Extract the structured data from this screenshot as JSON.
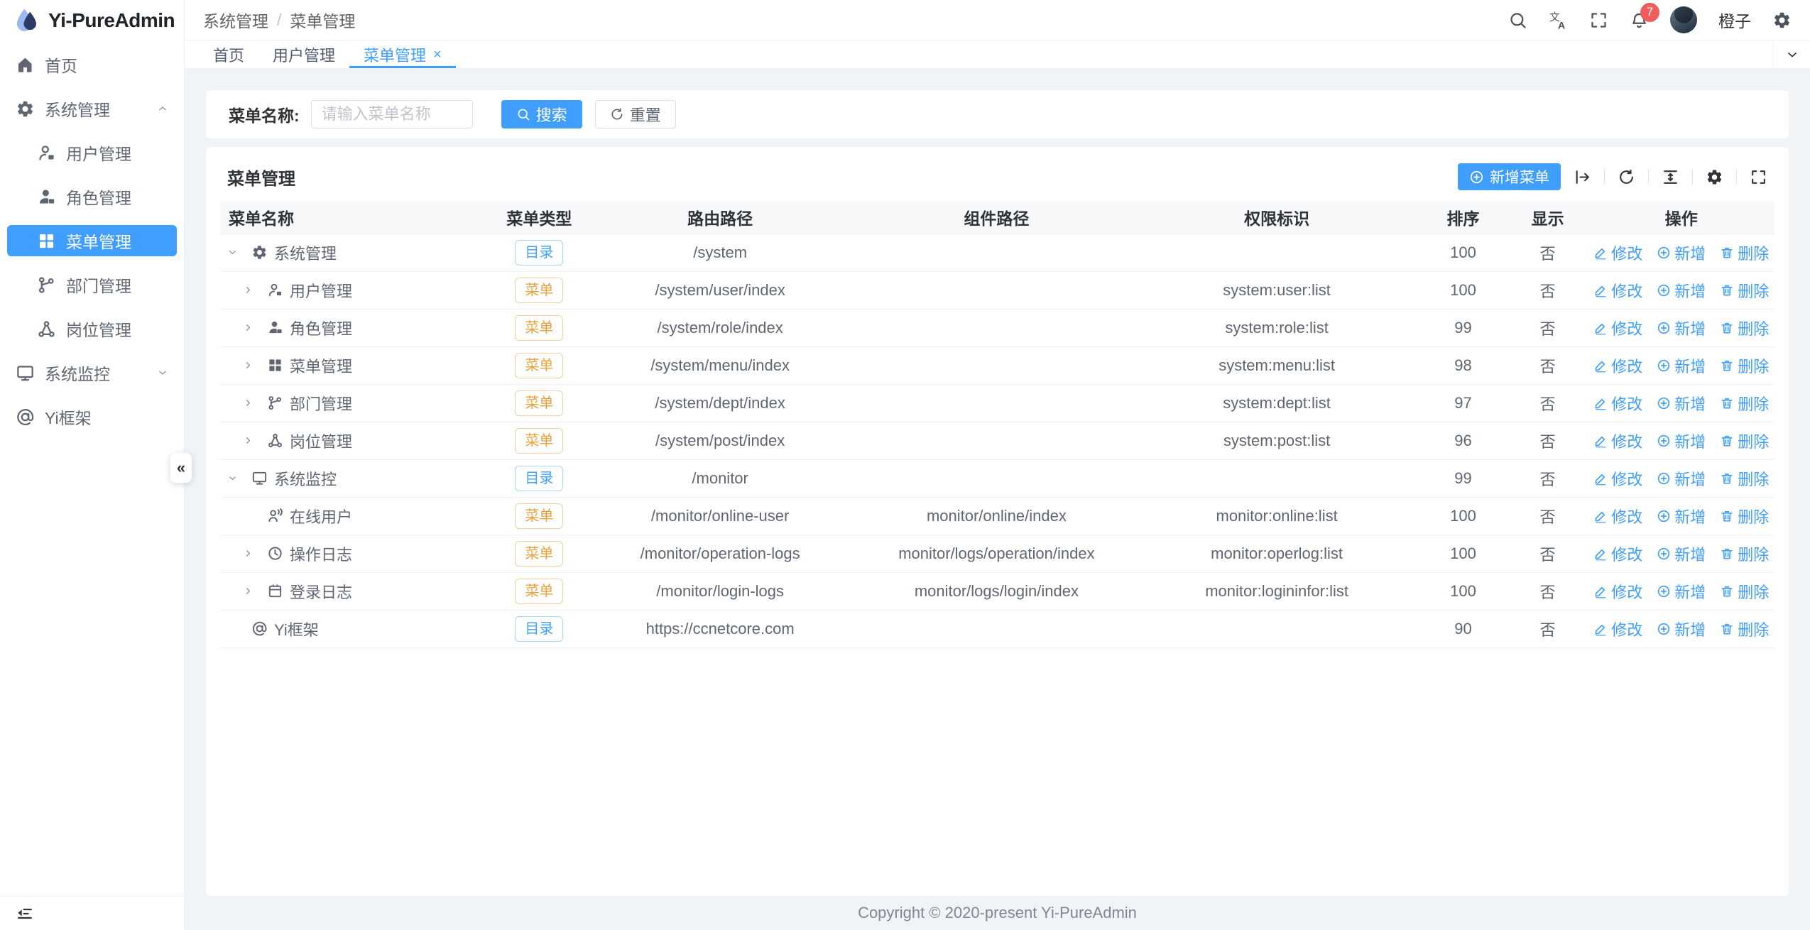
{
  "app": {
    "name": "Yi-PureAdmin",
    "footer": "Copyright © 2020-present Yi-PureAdmin"
  },
  "colors": {
    "primary": "#409eff",
    "warning": "#e6a23c",
    "danger_badge": "#f15c5c",
    "sidebar_active_bg": "#409eff"
  },
  "sidebar": {
    "logo_text": "Yi-PureAdmin",
    "items": [
      {
        "label": "首页",
        "icon": "home"
      },
      {
        "label": "系统管理",
        "icon": "gear",
        "expanded": true,
        "children": [
          {
            "label": "用户管理",
            "icon": "user"
          },
          {
            "label": "角色管理",
            "icon": "user-filled"
          },
          {
            "label": "菜单管理",
            "icon": "grid",
            "active": true
          },
          {
            "label": "部门管理",
            "icon": "branch"
          },
          {
            "label": "岗位管理",
            "icon": "post"
          }
        ]
      },
      {
        "label": "系统监控",
        "icon": "monitor",
        "expanded": false
      },
      {
        "label": "Yi框架",
        "icon": "at"
      }
    ]
  },
  "header": {
    "breadcrumb": [
      "系统管理",
      "菜单管理"
    ],
    "badge": "7",
    "username": "橙子"
  },
  "tabs": [
    {
      "label": "首页"
    },
    {
      "label": "用户管理"
    },
    {
      "label": "菜单管理",
      "active": true,
      "closable": true
    }
  ],
  "search": {
    "label": "菜单名称:",
    "placeholder": "请输入菜单名称",
    "search_label": "搜索",
    "reset_label": "重置"
  },
  "table_card": {
    "title": "菜单管理",
    "add_label": "新增菜单"
  },
  "table": {
    "columns": [
      "菜单名称",
      "菜单类型",
      "路由路径",
      "组件路径",
      "权限标识",
      "排序",
      "显示",
      "操作"
    ],
    "tags": {
      "dir": "目录",
      "menu": "菜单"
    },
    "ops": {
      "edit": "修改",
      "add": "新增",
      "delete": "删除"
    },
    "rows": [
      {
        "name": "系统管理",
        "icon": "gear",
        "arrow": "down",
        "level": 0,
        "type": "dir",
        "path": "/system",
        "component": "",
        "perm": "",
        "sort": "100",
        "visible": "否"
      },
      {
        "name": "用户管理",
        "icon": "user",
        "arrow": "right",
        "level": 1,
        "type": "menu",
        "path": "/system/user/index",
        "component": "",
        "perm": "system:user:list",
        "sort": "100",
        "visible": "否"
      },
      {
        "name": "角色管理",
        "icon": "user-filled",
        "arrow": "right",
        "level": 1,
        "type": "menu",
        "path": "/system/role/index",
        "component": "",
        "perm": "system:role:list",
        "sort": "99",
        "visible": "否"
      },
      {
        "name": "菜单管理",
        "icon": "grid",
        "arrow": "right",
        "level": 1,
        "type": "menu",
        "path": "/system/menu/index",
        "component": "",
        "perm": "system:menu:list",
        "sort": "98",
        "visible": "否"
      },
      {
        "name": "部门管理",
        "icon": "branch",
        "arrow": "right",
        "level": 1,
        "type": "menu",
        "path": "/system/dept/index",
        "component": "",
        "perm": "system:dept:list",
        "sort": "97",
        "visible": "否"
      },
      {
        "name": "岗位管理",
        "icon": "post",
        "arrow": "right",
        "level": 1,
        "type": "menu",
        "path": "/system/post/index",
        "component": "",
        "perm": "system:post:list",
        "sort": "96",
        "visible": "否"
      },
      {
        "name": "系统监控",
        "icon": "monitor",
        "arrow": "down",
        "level": 0,
        "type": "dir",
        "path": "/monitor",
        "component": "",
        "perm": "",
        "sort": "99",
        "visible": "否"
      },
      {
        "name": "在线用户",
        "icon": "online-user",
        "arrow": "none",
        "level": 1,
        "type": "menu",
        "path": "/monitor/online-user",
        "component": "monitor/online/index",
        "perm": "monitor:online:list",
        "sort": "100",
        "visible": "否"
      },
      {
        "name": "操作日志",
        "icon": "clock",
        "arrow": "right",
        "level": 1,
        "type": "menu",
        "path": "/monitor/operation-logs",
        "component": "monitor/logs/operation/index",
        "perm": "monitor:operlog:list",
        "sort": "100",
        "visible": "否"
      },
      {
        "name": "登录日志",
        "icon": "calendar",
        "arrow": "right",
        "level": 1,
        "type": "menu",
        "path": "/monitor/login-logs",
        "component": "monitor/logs/login/index",
        "perm": "monitor:logininfor:list",
        "sort": "100",
        "visible": "否"
      },
      {
        "name": "Yi框架",
        "icon": "at",
        "arrow": "none",
        "level": 0,
        "type": "dir",
        "path": "https://ccnetcore.com",
        "component": "",
        "perm": "",
        "sort": "90",
        "visible": "否"
      }
    ]
  }
}
